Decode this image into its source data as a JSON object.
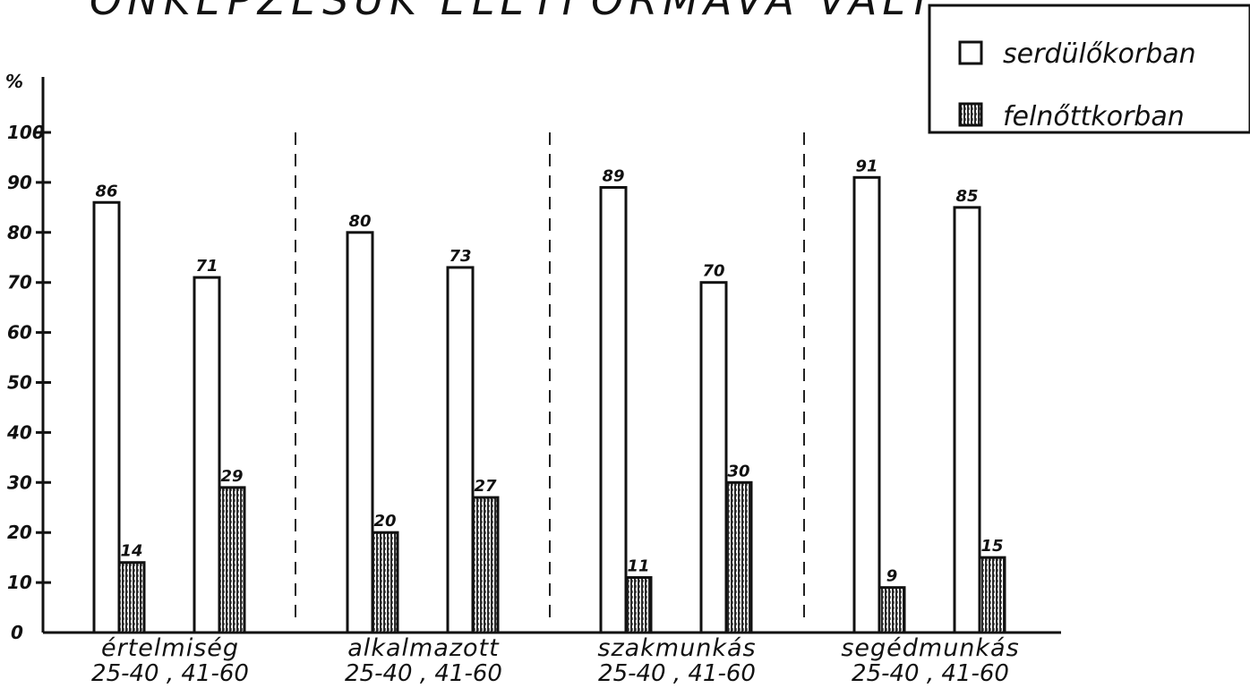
{
  "title": "ÖNKÉPZÉSÜK ÉLETFORMÁVÁ VÁLT",
  "chart_data": {
    "type": "bar",
    "ylabel": "%",
    "ylim": [
      0,
      100
    ],
    "yticks": [
      "0",
      "10",
      "20",
      "30",
      "40",
      "50",
      "60",
      "70",
      "80",
      "90",
      "100"
    ],
    "grid": false,
    "legend_position": "top-right",
    "series": [
      {
        "name": "serdülőkorban",
        "style": "open",
        "color": "#ffffff"
      },
      {
        "name": "felnőttkorban",
        "style": "hatched",
        "color": "#555555"
      }
    ],
    "groups": [
      {
        "category": "értelmiség",
        "ages": "25-40 , 41-60",
        "bars": [
          {
            "age": "25-40",
            "serdulokorban": 86,
            "felnottkorban": 14
          },
          {
            "age": "41-60",
            "serdulokorban": 71,
            "felnottkorban": 29
          }
        ]
      },
      {
        "category": "alkalmazott",
        "ages": "25-40 , 41-60",
        "bars": [
          {
            "age": "25-40",
            "serdulokorban": 80,
            "felnottkorban": 20
          },
          {
            "age": "41-60",
            "serdulokorban": 73,
            "felnottkorban": 27
          }
        ]
      },
      {
        "category": "szakmunkás",
        "ages": "25-40 , 41-60",
        "bars": [
          {
            "age": "25-40",
            "serdulokorban": 89,
            "felnottkorban": 11
          },
          {
            "age": "41-60",
            "serdulokorban": 70,
            "felnottkorban": 30
          }
        ]
      },
      {
        "category": "segédmunkás",
        "ages": "25-40 , 41-60",
        "bars": [
          {
            "age": "25-40",
            "serdulokorban": 91,
            "felnottkorban": 9
          },
          {
            "age": "41-60",
            "serdulokorban": 85,
            "felnottkorban": 15
          }
        ]
      }
    ]
  }
}
